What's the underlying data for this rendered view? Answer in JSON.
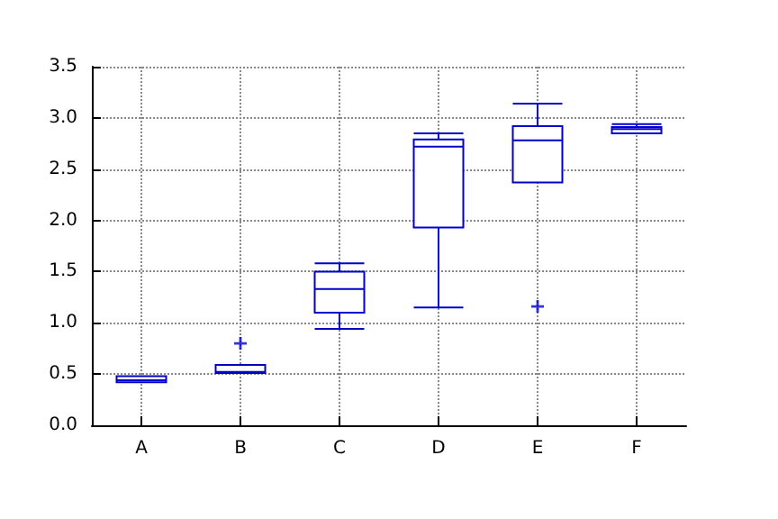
{
  "chart_data": {
    "type": "box",
    "categories": [
      "A",
      "B",
      "C",
      "D",
      "E",
      "F"
    ],
    "series": [
      {
        "color": "#0000cc",
        "boxes": [
          {
            "low": 0.42,
            "q1": 0.42,
            "median": 0.44,
            "q3": 0.48,
            "high": 0.48
          },
          {
            "low": 0.51,
            "q1": 0.51,
            "median": 0.52,
            "q3": 0.59,
            "high": 0.59,
            "outliers": [
              0.8
            ]
          },
          {
            "low": 0.94,
            "q1": 1.1,
            "median": 1.33,
            "q3": 1.5,
            "high": 1.58
          },
          {
            "low": 1.15,
            "q1": 1.93,
            "median": 2.72,
            "q3": 2.79,
            "high": 2.85
          },
          {
            "low": 2.37,
            "q1": 2.37,
            "median": 2.78,
            "q3": 2.92,
            "high": 3.14,
            "outliers": [
              1.16
            ]
          },
          {
            "low": 2.85,
            "q1": 2.85,
            "median": 2.89,
            "q3": 2.91,
            "high": 2.94
          }
        ]
      }
    ],
    "ylim": [
      0,
      3.5
    ],
    "yticks": [
      {
        "value": 0,
        "label": "0.0"
      },
      0.5,
      {
        "value": 1,
        "label": "1.0"
      },
      1.5,
      {
        "value": 2,
        "label": "2.0"
      },
      2.5,
      {
        "value": 3,
        "label": "3.0"
      },
      3.5
    ],
    "grid": true,
    "marker": "cross"
  }
}
